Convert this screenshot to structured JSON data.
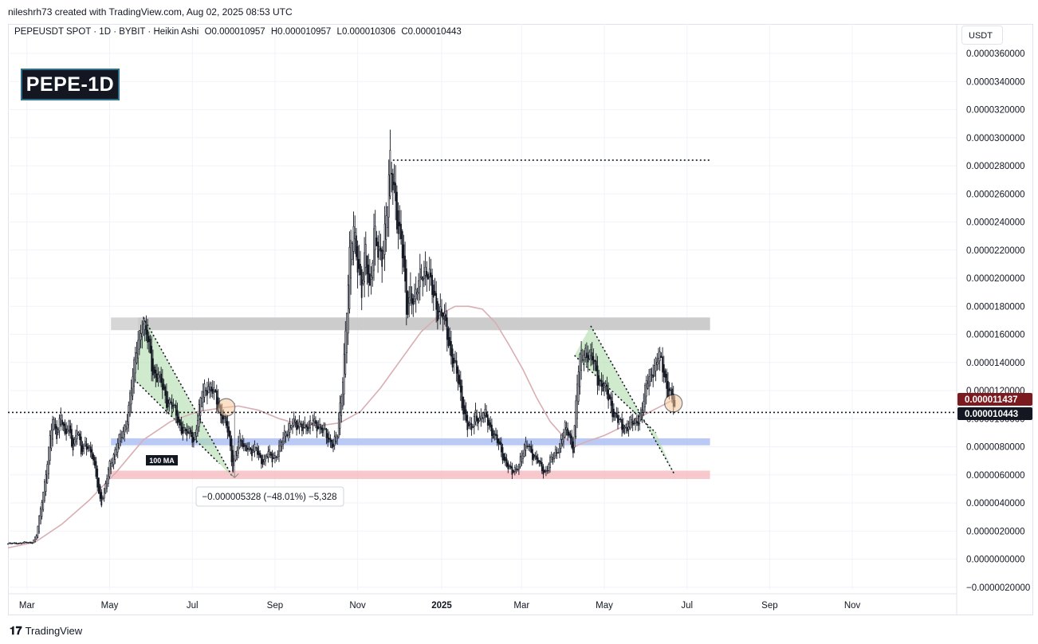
{
  "header": {
    "text": "nileshrh73 created with TradingView.com, Aug 02, 2025 08:53 UTC"
  },
  "symbol": {
    "name": "PEPEUSDT SPOT · 1D · BYBIT · Heikin Ashi",
    "open": "O0.000010957",
    "high": "H0.000010957",
    "low": "L0.000010306",
    "close": "C0.000010443"
  },
  "badge": "PEPE-1D",
  "currency": "USDT",
  "footer": {
    "brand": "TradingView"
  },
  "colors": {
    "candle": "#131722",
    "ma": "#d9aeb3",
    "resistance_zone": "#c8c8c8",
    "blue_support": "#a9bdf2",
    "red_support": "#f6b7bb",
    "channel_fill": "#a9d9a6",
    "price_tag": "#131722",
    "ma_tag": "#7b1b20"
  },
  "chart_data": {
    "type": "candlestick",
    "title": "PEPEUSDT SPOT · 1D · BYBIT · Heikin Ashi",
    "ylabel": "USDT",
    "ylim": [
      -2e-06,
      3.65e-05
    ],
    "y_ticks": [
      "0.0000360000",
      "0.0000340000",
      "0.0000320000",
      "0.0000300000",
      "0.0000280000",
      "0.0000260000",
      "0.0000240000",
      "0.0000220000",
      "0.0000200000",
      "0.0000180000",
      "0.0000160000",
      "0.0000140000",
      "0.0000120000",
      "0.0000100000",
      "0.0000080000",
      "0.0000060000",
      "0.0000040000",
      "0.0000020000",
      "0.0000000000",
      "−0.0000020000"
    ],
    "x_ticks": [
      "Mar",
      "May",
      "Jul",
      "Sep",
      "Nov",
      "2025",
      "Mar",
      "May",
      "Jul",
      "Sep",
      "Nov"
    ],
    "x_tick_days": [
      14,
      75,
      136,
      197,
      258,
      320,
      379,
      440,
      501,
      562,
      623
    ],
    "price_path": [
      [
        0,
        1.1e-06
      ],
      [
        18,
        1.2e-06
      ],
      [
        21,
        1.7e-06
      ],
      [
        24,
        3.5e-06
      ],
      [
        27,
        5.5e-06
      ],
      [
        30,
        7.8e-06
      ],
      [
        33,
        9.8e-06
      ],
      [
        36,
        9e-06
      ],
      [
        39,
        1.05e-05
      ],
      [
        42,
        8.5e-06
      ],
      [
        45,
        9.6e-06
      ],
      [
        48,
        8e-06
      ],
      [
        51,
        9.2e-06
      ],
      [
        54,
        7.5e-06
      ],
      [
        57,
        8.5e-06
      ],
      [
        60,
        7.8e-06
      ],
      [
        63,
        6.8e-06
      ],
      [
        65,
        6e-06
      ],
      [
        67,
        4.7e-06
      ],
      [
        69,
        4e-06
      ],
      [
        72,
        5.2e-06
      ],
      [
        75,
        6.8e-06
      ],
      [
        78,
        7.5e-06
      ],
      [
        81,
        8.2e-06
      ],
      [
        84,
        8.8e-06
      ],
      [
        87,
        9.8e-06
      ],
      [
        90,
        1.15e-05
      ],
      [
        93,
        1.35e-05
      ],
      [
        96,
        1.6e-05
      ],
      [
        99,
        1.68e-05
      ],
      [
        102,
        1.58e-05
      ],
      [
        105,
        1.45e-05
      ],
      [
        108,
        1.32e-05
      ],
      [
        111,
        1.28e-05
      ],
      [
        114,
        1.22e-05
      ],
      [
        117,
        1.14e-05
      ],
      [
        120,
        1.1e-05
      ],
      [
        123,
        1.04e-05
      ],
      [
        126,
        9.8e-06
      ],
      [
        129,
        9.2e-06
      ],
      [
        132,
        8.8e-06
      ],
      [
        135,
        9e-06
      ],
      [
        137,
        8.5e-06
      ],
      [
        139,
        9.5e-06
      ],
      [
        141,
        1.05e-05
      ],
      [
        143,
        1.15e-05
      ],
      [
        145,
        1.22e-05
      ],
      [
        148,
        1.25e-05
      ],
      [
        151,
        1.18e-05
      ],
      [
        154,
        1.12e-05
      ],
      [
        157,
        1.05e-05
      ],
      [
        160,
        9.8e-06
      ],
      [
        162,
        9e-06
      ],
      [
        164,
        7.8e-06
      ],
      [
        166,
        6.5e-06
      ],
      [
        168,
        7.8e-06
      ],
      [
        171,
        8.5e-06
      ],
      [
        174,
        7.8e-06
      ],
      [
        177,
        8.2e-06
      ],
      [
        180,
        7.5e-06
      ],
      [
        183,
        7.8e-06
      ],
      [
        186,
        7.2e-06
      ],
      [
        189,
        7e-06
      ],
      [
        192,
        7.5e-06
      ],
      [
        195,
        7.2e-06
      ],
      [
        198,
        7.5e-06
      ],
      [
        201,
        8e-06
      ],
      [
        204,
        8.8e-06
      ],
      [
        207,
        9.5e-06
      ],
      [
        210,
        9.8e-06
      ],
      [
        213,
        9.2e-06
      ],
      [
        216,
        9.8e-06
      ],
      [
        219,
        9.5e-06
      ],
      [
        222,
        9e-06
      ],
      [
        225,
        1.02e-05
      ],
      [
        228,
        9.6e-06
      ],
      [
        231,
        9e-06
      ],
      [
        234,
        9e-06
      ],
      [
        237,
        8.6e-06
      ],
      [
        240,
        8e-06
      ],
      [
        243,
        8.8e-06
      ],
      [
        246,
        1.2e-05
      ],
      [
        249,
        1.6e-05
      ],
      [
        252,
        2.1e-05
      ],
      [
        255,
        2.4e-05
      ],
      [
        258,
        2.15e-05
      ],
      [
        261,
        1.85e-05
      ],
      [
        264,
        2.2e-05
      ],
      [
        267,
        1.95e-05
      ],
      [
        270,
        2.3e-05
      ],
      [
        273,
        2.15e-05
      ],
      [
        276,
        2.2e-05
      ],
      [
        279,
        2.45e-05
      ],
      [
        282,
        2.75e-05
      ],
      [
        285,
        2.65e-05
      ],
      [
        288,
        2.4e-05
      ],
      [
        291,
        2.15e-05
      ],
      [
        294,
        1.75e-05
      ],
      [
        297,
        1.95e-05
      ],
      [
        300,
        1.8e-05
      ],
      [
        303,
        1.95e-05
      ],
      [
        306,
        2.1e-05
      ],
      [
        309,
        2.05e-05
      ],
      [
        312,
        1.92e-05
      ],
      [
        315,
        1.85e-05
      ],
      [
        318,
        1.78e-05
      ],
      [
        321,
        1.7e-05
      ],
      [
        324,
        1.6e-05
      ],
      [
        327,
        1.48e-05
      ],
      [
        330,
        1.35e-05
      ],
      [
        333,
        1.2e-05
      ],
      [
        336,
        1.08e-05
      ],
      [
        339,
        9.5e-06
      ],
      [
        342,
        9e-06
      ],
      [
        345,
        1.05e-05
      ],
      [
        348,
        1e-05
      ],
      [
        351,
        1.02e-05
      ],
      [
        354,
        9.8e-06
      ],
      [
        357,
        9.2e-06
      ],
      [
        360,
        8.5e-06
      ],
      [
        363,
        7.8e-06
      ],
      [
        366,
        7.2e-06
      ],
      [
        369,
        6.6e-06
      ],
      [
        372,
        6e-06
      ],
      [
        375,
        6.5e-06
      ],
      [
        378,
        7.2e-06
      ],
      [
        381,
        7.8e-06
      ],
      [
        384,
        8.2e-06
      ],
      [
        387,
        7.5e-06
      ],
      [
        390,
        7e-06
      ],
      [
        393,
        6.5e-06
      ],
      [
        396,
        6.2e-06
      ],
      [
        399,
        6.8e-06
      ],
      [
        402,
        7.2e-06
      ],
      [
        405,
        7.8e-06
      ],
      [
        408,
        8.5e-06
      ],
      [
        411,
        9.2e-06
      ],
      [
        414,
        8.8e-06
      ],
      [
        417,
        8e-06
      ],
      [
        420,
        1.25e-05
      ],
      [
        423,
        1.45e-05
      ],
      [
        426,
        1.5e-05
      ],
      [
        429,
        1.45e-05
      ],
      [
        432,
        1.38e-05
      ],
      [
        435,
        1.3e-05
      ],
      [
        438,
        1.25e-05
      ],
      [
        441,
        1.18e-05
      ],
      [
        444,
        1.12e-05
      ],
      [
        447,
        1.05e-05
      ],
      [
        450,
        9.8e-06
      ],
      [
        453,
        9.2e-06
      ],
      [
        456,
        9.5e-06
      ],
      [
        459,
        9.8e-06
      ],
      [
        462,
        9.4e-06
      ],
      [
        465,
        1e-05
      ],
      [
        468,
        1.1e-05
      ],
      [
        471,
        1.22e-05
      ],
      [
        474,
        1.32e-05
      ],
      [
        477,
        1.4e-05
      ],
      [
        480,
        1.43e-05
      ],
      [
        483,
        1.35e-05
      ],
      [
        486,
        1.25e-05
      ],
      [
        489,
        1.18e-05
      ],
      [
        491,
        1.08e-05
      ],
      [
        492,
        1.04e-05
      ]
    ],
    "ma100_path": [
      [
        0,
        8e-07
      ],
      [
        20,
        1.2e-06
      ],
      [
        40,
        2.5e-06
      ],
      [
        60,
        4.2e-06
      ],
      [
        80,
        6.2e-06
      ],
      [
        100,
        8.5e-06
      ],
      [
        120,
        9.8e-06
      ],
      [
        140,
        1.05e-05
      ],
      [
        160,
        1.08e-05
      ],
      [
        170,
        1.09e-05
      ],
      [
        185,
        1.06e-05
      ],
      [
        200,
        1e-05
      ],
      [
        215,
        9.6e-06
      ],
      [
        230,
        9.5e-06
      ],
      [
        245,
        9.7e-06
      ],
      [
        260,
        1.05e-05
      ],
      [
        275,
        1.22e-05
      ],
      [
        290,
        1.42e-05
      ],
      [
        305,
        1.62e-05
      ],
      [
        320,
        1.75e-05
      ],
      [
        330,
        1.8e-05
      ],
      [
        340,
        1.8e-05
      ],
      [
        350,
        1.78e-05
      ],
      [
        360,
        1.68e-05
      ],
      [
        370,
        1.52e-05
      ],
      [
        380,
        1.35e-05
      ],
      [
        390,
        1.15e-05
      ],
      [
        400,
        9.8e-06
      ],
      [
        410,
        8.7e-06
      ],
      [
        418,
        8e-06
      ],
      [
        425,
        8.3e-06
      ],
      [
        440,
        8.8e-06
      ],
      [
        455,
        9.5e-06
      ],
      [
        470,
        1.03e-05
      ],
      [
        480,
        1.08e-05
      ],
      [
        492,
        1.14e-05
      ]
    ],
    "levels": {
      "ath_dotted": 2.84e-05,
      "ath_start_day": 284,
      "ath_end_day": 518,
      "resistance_zone": [
        1.63e-05,
        1.72e-05
      ],
      "blue_support_zone": [
        8.1e-06,
        8.6e-06
      ],
      "red_support_zone": [
        5.7e-06,
        6.3e-06
      ],
      "current_price": 1.0443e-05,
      "zones_start_day": 76,
      "zones_end_day": 518
    },
    "channels": [
      {
        "upper": [
          [
            100,
            1.72e-05
          ],
          [
            166,
            5.8e-06
          ]
        ],
        "lower": [
          [
            93,
            1.28e-05
          ],
          [
            156,
            6.8e-06
          ]
        ]
      },
      {
        "upper": [
          [
            430,
            1.66e-05
          ],
          [
            492,
            6e-06
          ]
        ],
        "lower": [
          [
            418,
            1.45e-05
          ],
          [
            478,
            9e-06
          ]
        ]
      }
    ],
    "measure": {
      "from_day": 159,
      "to_day": 169,
      "from_price": 1.11e-05,
      "to_price": 5.8e-06,
      "label": "−0.000005328 (−48.01%) −5,328"
    },
    "ma_label": "100 MA",
    "price_tags": {
      "ma": "0.000011437",
      "price": "0.000010443"
    },
    "circles": [
      [
        161,
        1.08e-05
      ],
      [
        491,
        1.11e-05
      ]
    ]
  }
}
